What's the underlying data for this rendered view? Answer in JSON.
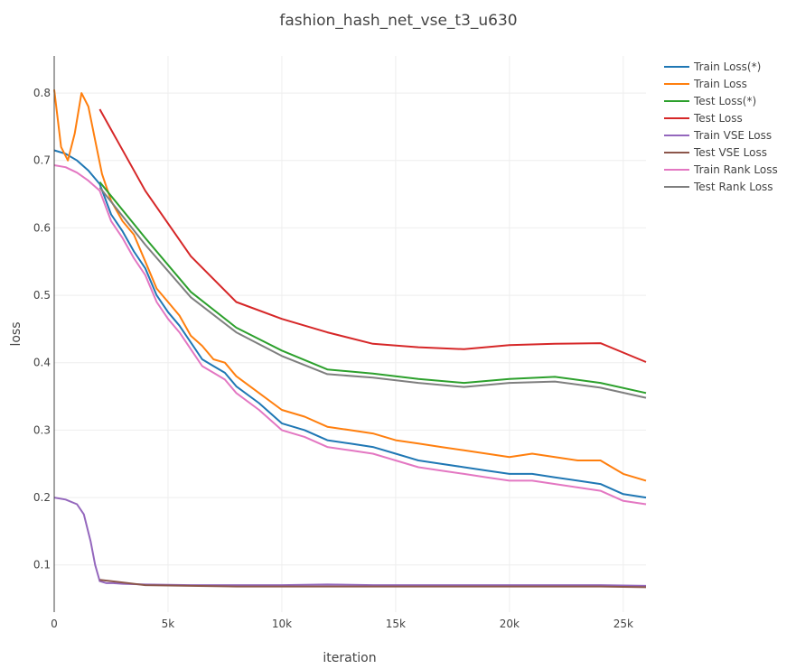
{
  "chart_data": {
    "type": "line",
    "title": "fashion_hash_net_vse_t3_u630",
    "xlabel": "iteration",
    "ylabel": "loss",
    "xlim": [
      0,
      26000
    ],
    "ylim": [
      0.03,
      0.855
    ],
    "x_ticks": [
      0,
      5000,
      10000,
      15000,
      20000,
      25000
    ],
    "x_tick_labels": [
      "0",
      "5k",
      "10k",
      "15k",
      "20k",
      "25k"
    ],
    "y_ticks": [
      0.1,
      0.2,
      0.3,
      0.4,
      0.5,
      0.6,
      0.7,
      0.8
    ],
    "y_tick_labels": [
      "0.1",
      "0.2",
      "0.3",
      "0.4",
      "0.5",
      "0.6",
      "0.7",
      "0.8"
    ],
    "grid": true,
    "legend_position": "top-right",
    "series": [
      {
        "name": "Train Loss(*)",
        "color": "#1f77b4",
        "x": [
          0,
          500,
          1000,
          1500,
          2000,
          2500,
          3000,
          3500,
          4000,
          4500,
          5000,
          5500,
          6000,
          6500,
          7000,
          7500,
          8000,
          9000,
          10000,
          11000,
          12000,
          13000,
          14000,
          15000,
          16000,
          17000,
          18000,
          19000,
          20000,
          21000,
          22000,
          23000,
          24000,
          25000,
          26000
        ],
        "y": [
          0.715,
          0.71,
          0.7,
          0.685,
          0.665,
          0.62,
          0.595,
          0.565,
          0.54,
          0.5,
          0.475,
          0.455,
          0.43,
          0.405,
          0.395,
          0.385,
          0.365,
          0.34,
          0.31,
          0.3,
          0.285,
          0.28,
          0.275,
          0.265,
          0.255,
          0.25,
          0.245,
          0.24,
          0.235,
          0.235,
          0.23,
          0.225,
          0.22,
          0.205,
          0.2
        ]
      },
      {
        "name": "Train Loss",
        "color": "#ff7f0e",
        "x": [
          0,
          300,
          600,
          900,
          1200,
          1500,
          1800,
          2100,
          2500,
          3000,
          3500,
          4000,
          4500,
          5000,
          5500,
          6000,
          6500,
          7000,
          7500,
          8000,
          9000,
          10000,
          11000,
          12000,
          13000,
          14000,
          15000,
          16000,
          17000,
          18000,
          19000,
          20000,
          21000,
          22000,
          23000,
          24000,
          25000,
          26000
        ],
        "y": [
          0.805,
          0.72,
          0.7,
          0.74,
          0.8,
          0.78,
          0.73,
          0.68,
          0.64,
          0.61,
          0.59,
          0.55,
          0.51,
          0.49,
          0.47,
          0.44,
          0.425,
          0.405,
          0.4,
          0.38,
          0.355,
          0.33,
          0.32,
          0.305,
          0.3,
          0.295,
          0.285,
          0.28,
          0.275,
          0.27,
          0.265,
          0.26,
          0.265,
          0.26,
          0.255,
          0.255,
          0.235,
          0.225
        ]
      },
      {
        "name": "Test Loss(*)",
        "color": "#2ca02c",
        "x": [
          2000,
          4000,
          6000,
          8000,
          10000,
          12000,
          14000,
          16000,
          18000,
          20000,
          22000,
          24000,
          26000
        ],
        "y": [
          0.668,
          0.585,
          0.505,
          0.452,
          0.418,
          0.39,
          0.384,
          0.376,
          0.37,
          0.376,
          0.379,
          0.37,
          0.355
        ]
      },
      {
        "name": "Test Loss",
        "color": "#d62728",
        "x": [
          2000,
          4000,
          6000,
          8000,
          10000,
          12000,
          14000,
          16000,
          18000,
          20000,
          22000,
          24000,
          26000
        ],
        "y": [
          0.776,
          0.655,
          0.558,
          0.49,
          0.465,
          0.445,
          0.428,
          0.423,
          0.42,
          0.426,
          0.428,
          0.429,
          0.401
        ]
      },
      {
        "name": "Train VSE Loss",
        "color": "#9467bd",
        "x": [
          0,
          500,
          1000,
          1300,
          1600,
          1800,
          2000,
          2300,
          2600,
          3000,
          4000,
          6000,
          8000,
          10000,
          12000,
          14000,
          16000,
          18000,
          20000,
          22000,
          24000,
          26000
        ],
        "y": [
          0.2,
          0.197,
          0.19,
          0.175,
          0.135,
          0.1,
          0.076,
          0.073,
          0.073,
          0.072,
          0.071,
          0.07,
          0.07,
          0.07,
          0.071,
          0.07,
          0.07,
          0.07,
          0.07,
          0.07,
          0.07,
          0.069
        ]
      },
      {
        "name": "Test VSE Loss",
        "color": "#8c564b",
        "x": [
          2000,
          4000,
          6000,
          8000,
          10000,
          12000,
          14000,
          16000,
          18000,
          20000,
          22000,
          24000,
          26000
        ],
        "y": [
          0.078,
          0.07,
          0.069,
          0.068,
          0.068,
          0.068,
          0.068,
          0.068,
          0.068,
          0.068,
          0.068,
          0.068,
          0.067
        ]
      },
      {
        "name": "Train Rank Loss",
        "color": "#e377c2",
        "x": [
          0,
          500,
          1000,
          1500,
          2000,
          2500,
          3000,
          3500,
          4000,
          4500,
          5000,
          5500,
          6000,
          6500,
          7000,
          7500,
          8000,
          9000,
          10000,
          11000,
          12000,
          13000,
          14000,
          15000,
          16000,
          17000,
          18000,
          19000,
          20000,
          21000,
          22000,
          23000,
          24000,
          25000,
          26000
        ],
        "y": [
          0.693,
          0.69,
          0.682,
          0.67,
          0.655,
          0.61,
          0.585,
          0.555,
          0.53,
          0.49,
          0.465,
          0.445,
          0.42,
          0.395,
          0.385,
          0.375,
          0.355,
          0.33,
          0.3,
          0.29,
          0.275,
          0.27,
          0.265,
          0.255,
          0.245,
          0.24,
          0.235,
          0.23,
          0.225,
          0.225,
          0.22,
          0.215,
          0.21,
          0.195,
          0.19
        ]
      },
      {
        "name": "Test Rank Loss",
        "color": "#7f7f7f",
        "x": [
          2000,
          4000,
          6000,
          8000,
          10000,
          12000,
          14000,
          16000,
          18000,
          20000,
          22000,
          24000,
          26000
        ],
        "y": [
          0.66,
          0.575,
          0.497,
          0.445,
          0.41,
          0.383,
          0.378,
          0.37,
          0.364,
          0.37,
          0.372,
          0.363,
          0.348
        ]
      }
    ]
  }
}
